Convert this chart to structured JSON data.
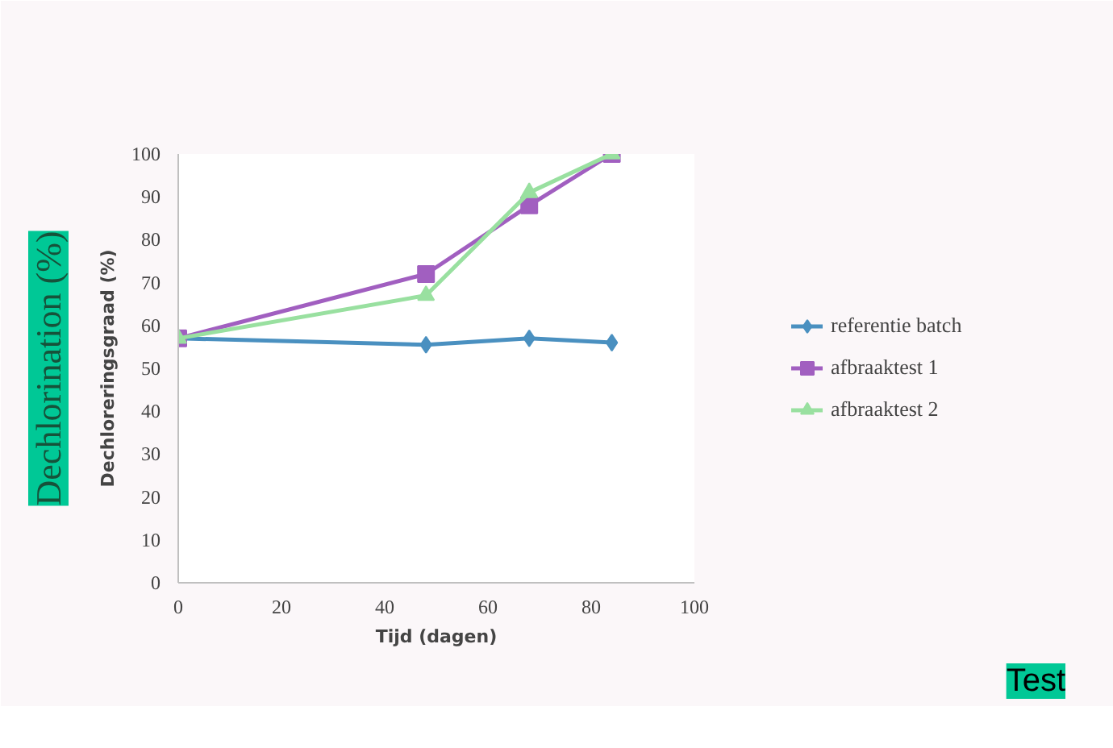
{
  "chart_data": {
    "type": "line",
    "xlabel": "Tijd (dagen)",
    "ylabel": "Dechloreringsgraad (%)",
    "x": [
      0,
      48,
      68,
      84
    ],
    "series": [
      {
        "name": "referentie batch",
        "color": "#4a90c0",
        "marker": "diamond",
        "values": [
          57,
          55.5,
          57,
          56
        ]
      },
      {
        "name": "afbraaktest 1",
        "color": "#a15fc0",
        "marker": "square",
        "values": [
          57,
          72,
          88,
          100
        ]
      },
      {
        "name": "afbraaktest 2",
        "color": "#99e0a0",
        "marker": "triangle",
        "values": [
          57,
          67,
          91,
          100
        ]
      }
    ],
    "xlim": [
      0,
      100
    ],
    "xticks": [
      0,
      20,
      40,
      60,
      80,
      100
    ],
    "ylim": [
      0,
      100
    ],
    "yticks": [
      0,
      10,
      20,
      30,
      40,
      50,
      60,
      70,
      80,
      90,
      100
    ],
    "grid": false,
    "legend": "right",
    "line_style": "solid",
    "annotations": [
      "Dechlorination (%)",
      "Test"
    ]
  }
}
